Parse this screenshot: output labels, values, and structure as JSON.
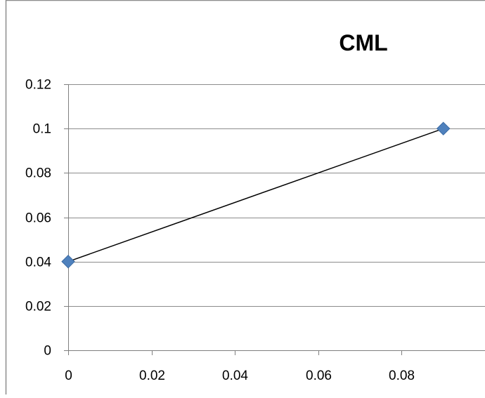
{
  "chart_data": {
    "type": "scatter",
    "title": "CML",
    "xlabel": "",
    "ylabel": "",
    "xlim": [
      0,
      0.1
    ],
    "ylim": [
      0,
      0.12
    ],
    "x_ticks": [
      "0",
      "0.02",
      "0.04",
      "0.06",
      "0.08"
    ],
    "y_ticks": [
      "0",
      "0.02",
      "0.04",
      "0.06",
      "0.08",
      "0.1",
      "0.12"
    ],
    "grid": "horizontal",
    "legend": "none",
    "series": [
      {
        "x": [
          0,
          0.09
        ],
        "y": [
          0.04,
          0.1
        ],
        "line": true,
        "marker": "diamond"
      }
    ],
    "colors": {
      "marker": "#4f81bd",
      "marker_edge": "#3a6aa3",
      "line": "#000000",
      "grid": "#8c8c8c",
      "axis": "#7f7f7f",
      "border": "#8c8c8c"
    }
  }
}
